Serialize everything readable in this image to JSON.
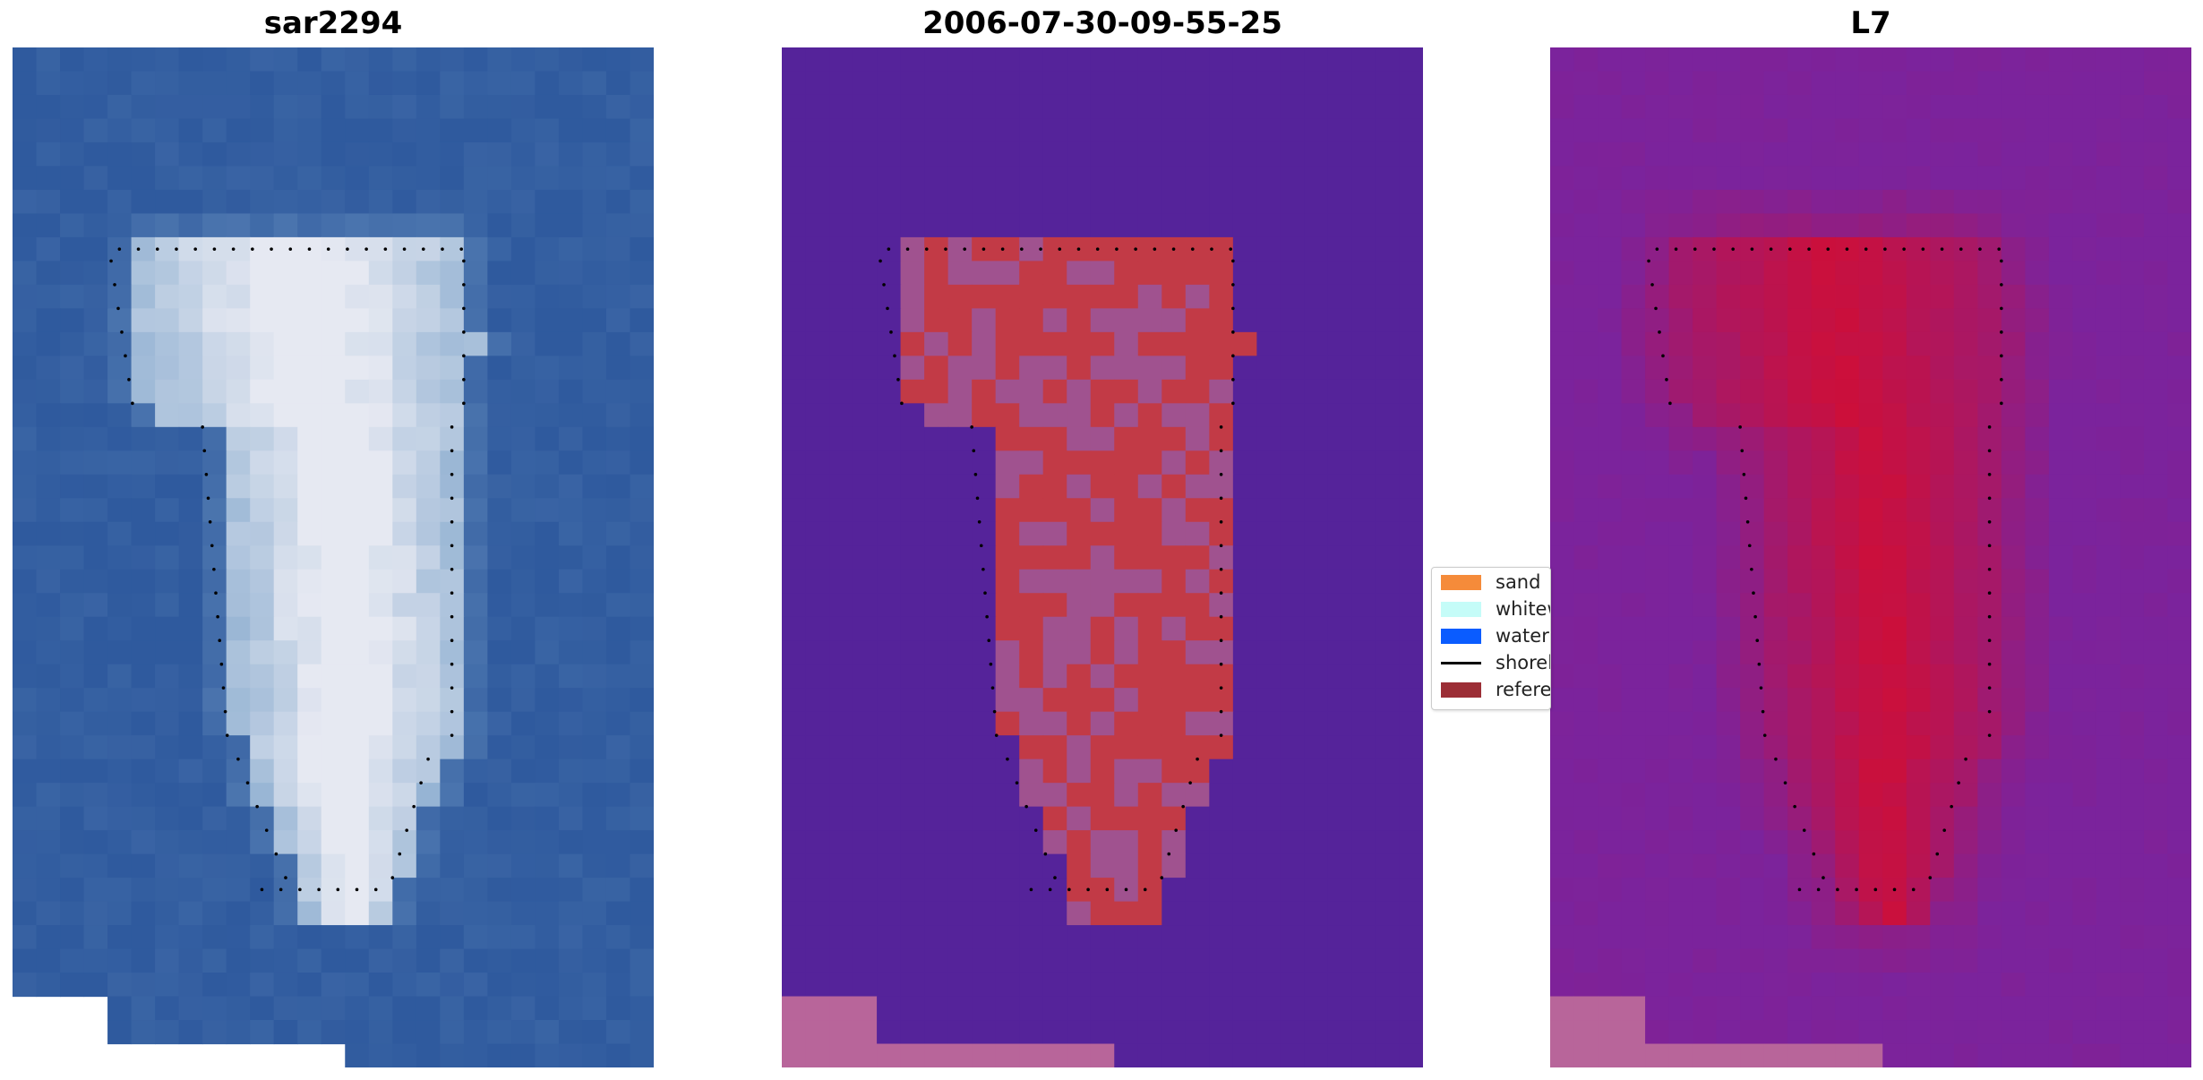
{
  "panels": [
    {
      "title": "sar2294"
    },
    {
      "title": "2006-07-30-09-55-25"
    },
    {
      "title": "L7"
    }
  ],
  "legend": {
    "items": [
      {
        "label": "sand",
        "color": "#f58b3a",
        "kind": "patch"
      },
      {
        "label": "whitewater",
        "color": "#c5fcf8",
        "kind": "patch"
      },
      {
        "label": "water",
        "color": "#0a5cff",
        "kind": "patch"
      },
      {
        "label": "shoreline",
        "color": "#000000",
        "kind": "line"
      },
      {
        "label": "reference",
        "color": "#9c2e36",
        "kind": "patch"
      }
    ]
  },
  "colors": {
    "rgb_water": "#2f5a9e",
    "rgb_island": "#e6e9f2",
    "class_background": "#55239a",
    "class_island_mixed": "#a0528f",
    "class_island_red": "#c23a46",
    "class_nodata": "#b8659a",
    "index_background": "#7b239c",
    "index_red": "#c8103f"
  }
}
